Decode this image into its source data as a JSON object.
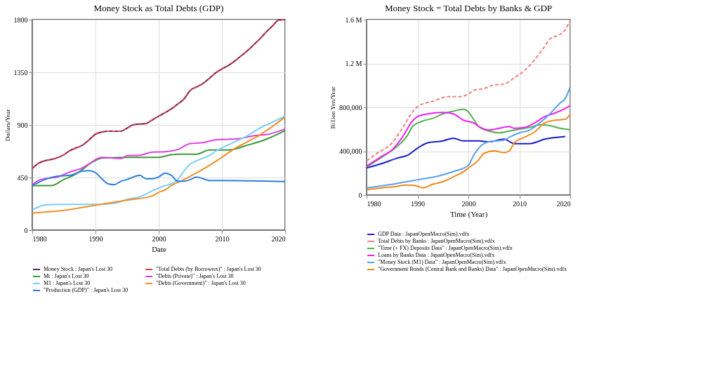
{
  "chart_data": [
    {
      "type": "line",
      "title": "Money Stock as Total Debts (GDP)",
      "xlabel": "Date",
      "ylabel": "Dollars/Year",
      "xlim": [
        1980,
        2020
      ],
      "xticks": [
        1980,
        1990,
        2000,
        2010,
        2020
      ],
      "ylim": [
        0,
        1800
      ],
      "yticks": [
        0,
        450,
        900,
        1350,
        1800
      ],
      "grid": true,
      "legend": "bottom",
      "line_style": "solid",
      "series": [
        {
          "name": "Money Stock : Japan's Lost 30",
          "color": "#4b2a6e",
          "x": [
            1980,
            1981,
            1982,
            1983,
            1985,
            1986,
            1987,
            1988,
            1989,
            1990,
            1991,
            1992,
            1994,
            1995,
            1996,
            1998,
            1999,
            2000,
            2001,
            2002,
            2003,
            2004,
            2005,
            2006,
            2007,
            2008,
            2009,
            2010,
            2011,
            2012,
            2013,
            2014,
            2015,
            2016,
            2017,
            2018,
            2019,
            2020
          ],
          "values": [
            528,
            572,
            594,
            604,
            645,
            682,
            704,
            729,
            773,
            821,
            839,
            846,
            846,
            873,
            902,
            912,
            943,
            975,
            1005,
            1037,
            1078,
            1122,
            1196,
            1225,
            1254,
            1298,
            1345,
            1379,
            1408,
            1445,
            1489,
            1533,
            1584,
            1636,
            1694,
            1746,
            1797,
            1800
          ]
        },
        {
          "name": "\"Total Debts (by Borrowers)\" : Japan's Lost 30",
          "color": "#e0404a",
          "line_style": "dashed",
          "x": [
            1980,
            1981,
            1982,
            1983,
            1985,
            1986,
            1987,
            1988,
            1989,
            1990,
            1991,
            1992,
            1994,
            1995,
            1996,
            1998,
            1999,
            2000,
            2001,
            2002,
            2003,
            2004,
            2005,
            2006,
            2007,
            2008,
            2009,
            2010,
            2011,
            2012,
            2013,
            2014,
            2015,
            2016,
            2017,
            2018,
            2019,
            2020
          ],
          "values": [
            528,
            572,
            594,
            604,
            645,
            682,
            704,
            729,
            773,
            821,
            839,
            846,
            846,
            873,
            902,
            912,
            943,
            975,
            1005,
            1037,
            1078,
            1122,
            1196,
            1225,
            1254,
            1298,
            1345,
            1379,
            1408,
            1445,
            1489,
            1533,
            1584,
            1636,
            1694,
            1746,
            1797,
            1800
          ]
        },
        {
          "name": "Mt : Japan's Lost 30",
          "color": "#3a9a3a",
          "x": [
            1980,
            1983,
            1985,
            1987,
            1988,
            1989,
            1990,
            1991,
            1996,
            2000,
            2002,
            2003,
            2006,
            2008,
            2011,
            2014,
            2017,
            2020
          ],
          "values": [
            381,
            381,
            433,
            484,
            521,
            565,
            596,
            616,
            623,
            623,
            645,
            650,
            650,
            685,
            685,
            726,
            777,
            851
          ]
        },
        {
          "name": "\"Debts (Private)\" : Japan's Lost 30",
          "color": "#e040e0",
          "x": [
            1980,
            1981,
            1982,
            1984,
            1986,
            1988,
            1989,
            1990,
            1991,
            1994,
            1995,
            1997,
            1999,
            2001,
            2003,
            2005,
            2007,
            2009,
            2011,
            2013,
            2015,
            2017,
            2020
          ],
          "values": [
            389,
            425,
            440,
            455,
            499,
            535,
            568,
            604,
            623,
            612,
            638,
            641,
            667,
            670,
            689,
            741,
            748,
            773,
            777,
            785,
            807,
            817,
            865
          ]
        },
        {
          "name": "M1 : Japan's Lost 30",
          "color": "#7fd0f0",
          "x": [
            1980,
            1981,
            1982,
            1985,
            1990,
            1993,
            1995,
            1997,
            1999,
            2001,
            2002,
            2003,
            2004,
            2005,
            2006,
            2008,
            2009,
            2010,
            2012,
            2014,
            2016,
            2018,
            2020
          ],
          "values": [
            176,
            198,
            216,
            220,
            220,
            230,
            264,
            286,
            337,
            381,
            396,
            433,
            506,
            565,
            594,
            638,
            675,
            704,
            755,
            807,
            873,
            924,
            975
          ]
        },
        {
          "name": "\"Debts (Government)\" : Japan's Lost 30",
          "color": "#f0902a",
          "x": [
            1980,
            1985,
            1990,
            1995,
            1999,
            2000,
            2001,
            2002,
            2004,
            2006,
            2008,
            2010,
            2012,
            2014,
            2016,
            2018,
            2020
          ],
          "values": [
            147,
            169,
            213,
            257,
            293,
            323,
            345,
            381,
            433,
            491,
            553,
            623,
            697,
            755,
            814,
            887,
            968
          ]
        },
        {
          "name": "\"Production (GDP)\" : Japan's Lost 30",
          "color": "#2f7fdf",
          "x": [
            1980,
            1982,
            1984,
            1986,
            1988,
            1989,
            1990,
            1991,
            1992,
            1993,
            1994,
            1995,
            1996,
            1997,
            1998,
            1999,
            2000,
            2001,
            2002,
            2003,
            2004,
            2005,
            2006,
            2007,
            2008,
            2010,
            2015,
            2020
          ],
          "values": [
            381,
            433,
            462,
            469,
            506,
            509,
            491,
            440,
            396,
            389,
            418,
            433,
            455,
            469,
            440,
            440,
            455,
            488,
            469,
            418,
            418,
            433,
            455,
            440,
            425,
            425,
            421,
            415
          ]
        }
      ]
    },
    {
      "type": "line",
      "title": "Money Stock = Total Debts by Banks & GDP",
      "xlabel": "Time (Year)",
      "ylabel": "Billion Yen/Year",
      "xlim": [
        1980,
        2020
      ],
      "xticks": [
        1980,
        1990,
        2000,
        2010,
        2020
      ],
      "ylim": [
        0,
        1600000
      ],
      "yticks": [
        {
          "value": 0,
          "label": "0"
        },
        {
          "value": 400000,
          "label": "400,000"
        },
        {
          "value": 800000,
          "label": "800,000"
        },
        {
          "value": 1200000,
          "label": "1.2 M"
        },
        {
          "value": 1600000,
          "label": "1.6 M"
        }
      ],
      "grid": true,
      "legend": "bottom",
      "line_style": "solid",
      "series": [
        {
          "name": "GDP Data : JapanOpenMacro(Sim).vdfx",
          "color": "#1a1ad0",
          "x": [
            1980,
            1983,
            1986,
            1988,
            1990,
            1992,
            1995,
            1997,
            1999,
            2002,
            2004,
            2007,
            2009,
            2012,
            2015,
            2019
          ],
          "values": [
            247000,
            288000,
            337000,
            362000,
            428000,
            477000,
            494000,
            519000,
            494000,
            494000,
            486000,
            510000,
            469000,
            469000,
            510000,
            535000
          ]
        },
        {
          "name": "Total Debts by Banks : JapanOpenMacro(Sim).vdfx",
          "color": "#f08080",
          "line_style": "dashed",
          "x": [
            1980,
            1982,
            1985,
            1987,
            1989,
            1990,
            1993,
            1996,
            1998,
            2000,
            2001,
            2003,
            2005,
            2007,
            2009,
            2011,
            2013,
            2015,
            2016,
            2018,
            2019,
            2020
          ],
          "values": [
            313000,
            379000,
            477000,
            609000,
            757000,
            807000,
            856000,
            897000,
            897000,
            922000,
            955000,
            971000,
            1004000,
            1012000,
            1070000,
            1136000,
            1235000,
            1358000,
            1424000,
            1465000,
            1506000,
            1600000
          ]
        },
        {
          "name": "\"Time (+ FX) Deposits Data\" : JapanOpenMacro(Sim).vdfx",
          "color": "#50b050",
          "x": [
            1980,
            1983,
            1986,
            1988,
            1989,
            1991,
            1993,
            1995,
            1997,
            1999,
            2000,
            2001,
            2002,
            2004,
            2006,
            2008,
            2010,
            2012,
            2014,
            2016,
            2018,
            2020
          ],
          "values": [
            255000,
            346000,
            444000,
            543000,
            626000,
            675000,
            700000,
            741000,
            765000,
            782000,
            757000,
            691000,
            626000,
            584000,
            568000,
            584000,
            601000,
            617000,
            642000,
            634000,
            609000,
            596000
          ]
        },
        {
          "name": "Loans by Banks Data : JapanOpenMacro(Sim).vdfx",
          "color": "#f020f0",
          "x": [
            1980,
            1983,
            1985,
            1987,
            1989,
            1990,
            1992,
            1995,
            1997,
            1999,
            2001,
            2002,
            2004,
            2006,
            2008,
            2009,
            2011,
            2013,
            2015,
            2017,
            2019,
            2020
          ],
          "values": [
            263000,
            354000,
            412000,
            527000,
            675000,
            716000,
            741000,
            754000,
            741000,
            683000,
            658000,
            626000,
            593000,
            609000,
            626000,
            609000,
            617000,
            658000,
            716000,
            749000,
            790000,
            815000
          ]
        },
        {
          "name": "\"Money Stock (M1) Data\" : JapanOpenMacro(Sim).vdfx",
          "color": "#5aa0f0",
          "x": [
            1980,
            1984,
            1987,
            1990,
            1994,
            1997,
            2000,
            2001,
            2002,
            2004,
            2007,
            2008,
            2010,
            2012,
            2014,
            2016,
            2018,
            2019,
            2020
          ],
          "values": [
            66000,
            91000,
            115000,
            140000,
            173000,
            214000,
            272000,
            362000,
            428000,
            486000,
            502000,
            527000,
            568000,
            593000,
            658000,
            741000,
            840000,
            881000,
            988000
          ]
        },
        {
          "name": "\"Government Bonds (Central Bank and Banks) Data\" : JapanOpenMacro(Sim).vdfx",
          "color": "#f08a1e",
          "x": [
            1980,
            1983,
            1985,
            1988,
            1990,
            1991,
            1993,
            1995,
            1997,
            1999,
            2000,
            2002,
            2003,
            2005,
            2007,
            2008,
            2009,
            2011,
            2013,
            2015,
            2017,
            2019,
            2020
          ],
          "values": [
            49000,
            66000,
            74000,
            91000,
            82000,
            66000,
            99000,
            123000,
            165000,
            214000,
            247000,
            321000,
            379000,
            403000,
            387000,
            403000,
            477000,
            527000,
            576000,
            658000,
            683000,
            691000,
            741000
          ]
        }
      ]
    }
  ]
}
